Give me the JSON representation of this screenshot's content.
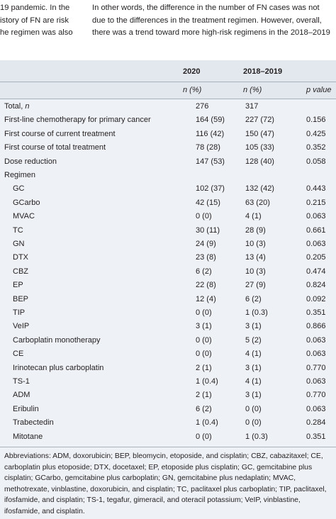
{
  "top_text": {
    "left_lines": [
      "19 pandemic. In the",
      "istory of FN are risk",
      "he regimen was also"
    ],
    "right_lines": [
      "In other words, the difference in the number of FN cases was not",
      "due to the differences in the treatment regimen. However, overall,",
      "there was a trend toward more high-risk regimens in the 2018–2019"
    ]
  },
  "table": {
    "header": {
      "col_2020": "2020",
      "col_2018": "2018–2019",
      "sub_2020": "n (%)",
      "sub_2018": "n (%)",
      "sub_p": "p value"
    },
    "rows": [
      {
        "label": "Total, n",
        "v2020": "276",
        "v2018": "317",
        "p": ""
      },
      {
        "label": "First-line chemotherapy for primary cancer",
        "v2020": "164 (59)",
        "v2018": "227 (72)",
        "p": "0.156"
      },
      {
        "label": "First course of current treatment",
        "v2020": "116 (42)",
        "v2018": "150 (47)",
        "p": "0.425"
      },
      {
        "label": "First course of total treatment",
        "v2020": "78 (28)",
        "v2018": "105 (33)",
        "p": "0.352"
      },
      {
        "label": "Dose reduction",
        "v2020": "147 (53)",
        "v2018": "128 (40)",
        "p": "0.058"
      },
      {
        "label": "Regimen",
        "v2020": "",
        "v2018": "",
        "p": ""
      },
      {
        "label": "GC",
        "v2020": "102 (37)",
        "v2018": "132 (42)",
        "p": "0.443"
      },
      {
        "label": "GCarbo",
        "v2020": "42 (15)",
        "v2018": "63 (20)",
        "p": "0.215"
      },
      {
        "label": "MVAC",
        "v2020": "0 (0)",
        "v2018": "4 (1)",
        "p": "0.063"
      },
      {
        "label": "TC",
        "v2020": "30 (11)",
        "v2018": "28 (9)",
        "p": "0.661"
      },
      {
        "label": "GN",
        "v2020": "24 (9)",
        "v2018": "10 (3)",
        "p": "0.063"
      },
      {
        "label": "DTX",
        "v2020": "23 (8)",
        "v2018": "13 (4)",
        "p": "0.205"
      },
      {
        "label": "CBZ",
        "v2020": "6 (2)",
        "v2018": "10 (3)",
        "p": "0.474"
      },
      {
        "label": "EP",
        "v2020": "22 (8)",
        "v2018": "27 (9)",
        "p": "0.824"
      },
      {
        "label": "BEP",
        "v2020": "12 (4)",
        "v2018": "6 (2)",
        "p": "0.092"
      },
      {
        "label": "TIP",
        "v2020": "0 (0)",
        "v2018": "1 (0.3)",
        "p": "0.351"
      },
      {
        "label": "VeIP",
        "v2020": "3 (1)",
        "v2018": "3 (1)",
        "p": "0.866"
      },
      {
        "label": "Carboplatin monotherapy",
        "v2020": "0 (0)",
        "v2018": "5 (2)",
        "p": "0.063"
      },
      {
        "label": "CE",
        "v2020": "0 (0)",
        "v2018": "4 (1)",
        "p": "0.063"
      },
      {
        "label": "Irinotecan plus carboplatin",
        "v2020": "2 (1)",
        "v2018": "3 (1)",
        "p": "0.770"
      },
      {
        "label": "TS-1",
        "v2020": "1 (0.4)",
        "v2018": "4 (1)",
        "p": "0.063"
      },
      {
        "label": "ADM",
        "v2020": "2 (1)",
        "v2018": "3 (1)",
        "p": "0.770"
      },
      {
        "label": "Eribulin",
        "v2020": "6 (2)",
        "v2018": "0 (0)",
        "p": "0.063"
      },
      {
        "label": "Trabectedin",
        "v2020": "1 (0.4)",
        "v2018": "0 (0)",
        "p": "0.284"
      },
      {
        "label": "Mitotane",
        "v2020": "0 (0)",
        "v2018": "1 (0.3)",
        "p": "0.351"
      }
    ],
    "footnote": "Abbreviations: ADM, doxorubicin; BEP, bleomycin, etoposide, and cisplatin; CBZ, cabazitaxel; CE, carboplatin plus etoposide; DTX, docetaxel; EP, etoposide plus cisplatin; GC, gemcitabine plus cisplatin; GCarbo, gemcitabine plus carboplatin; GN, gemcitabine plus nedaplatin; MVAC, methotrexate, vinblastine, doxorubicin, and cisplatin; TC, paclitaxel plus carboplatin; TIP, paclitaxel, ifosfamide, and cisplatin; TS-1, tegafur, gimeracil, and oteracil potassium; VeIP, vinblastine, ifosfamide, and cisplatin."
  }
}
